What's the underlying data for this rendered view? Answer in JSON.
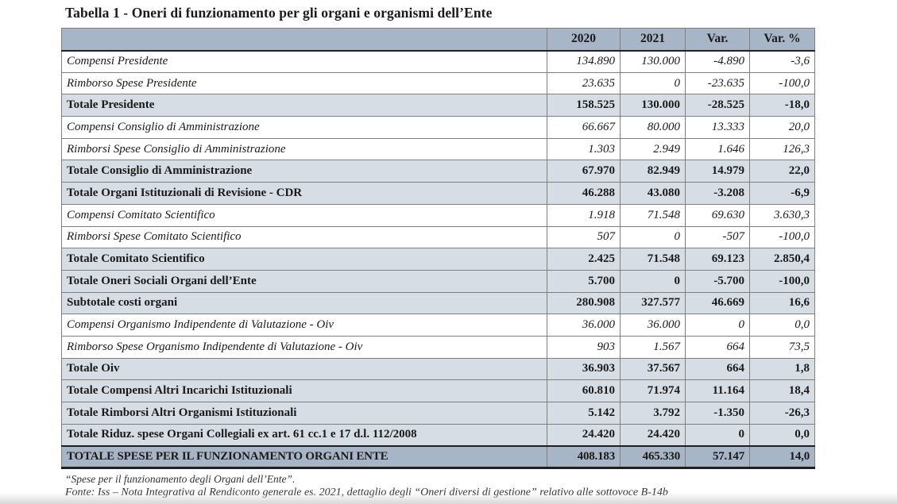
{
  "title": "Tabella 1 - Oneri di funzionamento per gli organi e organismi dell’Ente",
  "colors": {
    "header_bg": "#a8b5c6",
    "subtotal_bg": "#d7dde5",
    "grandtotal_bg": "#a8b5c6",
    "grid_border": "#7f7f7f",
    "heavy_border": "#1f1f1f"
  },
  "table": {
    "columns": [
      "",
      "2020",
      "2021",
      "Var.",
      "Var. %"
    ],
    "rows": [
      {
        "label": "Compensi Presidente",
        "v2020": "134.890",
        "v2021": "130.000",
        "var": "-4.890",
        "var_pct": "-3,6",
        "style": "plain"
      },
      {
        "label": "Rimborso Spese Presidente",
        "v2020": "23.635",
        "v2021": "0",
        "var": "-23.635",
        "var_pct": "-100,0",
        "style": "plain"
      },
      {
        "label": "Totale Presidente",
        "v2020": "158.525",
        "v2021": "130.000",
        "var": "-28.525",
        "var_pct": "-18,0",
        "style": "subtotal"
      },
      {
        "label": "Compensi Consiglio di Amministrazione",
        "v2020": "66.667",
        "v2021": "80.000",
        "var": "13.333",
        "var_pct": "20,0",
        "style": "plain"
      },
      {
        "label": "Rimborsi Spese Consiglio di Amministrazione",
        "v2020": "1.303",
        "v2021": "2.949",
        "var": "1.646",
        "var_pct": "126,3",
        "style": "plain"
      },
      {
        "label": "Totale Consiglio di Amministrazione",
        "v2020": "67.970",
        "v2021": "82.949",
        "var": "14.979",
        "var_pct": "22,0",
        "style": "subtotal"
      },
      {
        "label": "Totale Organi Istituzionali di Revisione - CDR",
        "v2020": "46.288",
        "v2021": "43.080",
        "var": "-3.208",
        "var_pct": "-6,9",
        "style": "subtotal"
      },
      {
        "label": "Compensi Comitato Scientifico",
        "v2020": "1.918",
        "v2021": "71.548",
        "var": "69.630",
        "var_pct": "3.630,3",
        "style": "plain"
      },
      {
        "label": "Rimborsi Spese Comitato Scientifico",
        "v2020": "507",
        "v2021": "0",
        "var": "-507",
        "var_pct": "-100,0",
        "style": "plain"
      },
      {
        "label": "Totale Comitato Scientifico",
        "v2020": "2.425",
        "v2021": "71.548",
        "var": "69.123",
        "var_pct": "2.850,4",
        "style": "subtotal"
      },
      {
        "label": "Totale Oneri Sociali Organi dell’Ente",
        "v2020": "5.700",
        "v2021": "0",
        "var": "-5.700",
        "var_pct": "-100,0",
        "style": "subtotal"
      },
      {
        "label": "Subtotale costi organi",
        "v2020": "280.908",
        "v2021": "327.577",
        "var": "46.669",
        "var_pct": "16,6",
        "style": "subtotal"
      },
      {
        "label": "Compensi Organismo Indipendente di Valutazione - Oiv",
        "v2020": "36.000",
        "v2021": "36.000",
        "var": "0",
        "var_pct": "0,0",
        "style": "plain"
      },
      {
        "label": "Rimborso Spese Organismo Indipendente di Valutazione - Oiv",
        "v2020": "903",
        "v2021": "1.567",
        "var": "664",
        "var_pct": "73,5",
        "style": "plain"
      },
      {
        "label": "Totale Oiv",
        "v2020": "36.903",
        "v2021": "37.567",
        "var": "664",
        "var_pct": "1,8",
        "style": "subtotal"
      },
      {
        "label": "Totale Compensi Altri Incarichi Istituzionali",
        "v2020": "60.810",
        "v2021": "71.974",
        "var": "11.164",
        "var_pct": "18,4",
        "style": "subtotal"
      },
      {
        "label": "Totale Rimborsi Altri Organismi Istituzionali",
        "v2020": "5.142",
        "v2021": "3.792",
        "var": "-1.350",
        "var_pct": "-26,3",
        "style": "subtotal"
      },
      {
        "label": "Totale Riduz. spese Organi Collegiali ex art. 61 cc.1 e 17 d.l. 112/2008",
        "v2020": "24.420",
        "v2021": "24.420",
        "var": "0",
        "var_pct": "0,0",
        "style": "subtotal"
      },
      {
        "label": "TOTALE SPESE PER IL FUNZIONAMENTO ORGANI ENTE",
        "v2020": "408.183",
        "v2021": "465.330",
        "var": "57.147",
        "var_pct": "14,0",
        "style": "grandtotal"
      }
    ]
  },
  "footnotes": [
    "“Spese per il funzionamento degli Organi dell’Ente”.",
    "Fonte: Iss – Nota Integrativa al Rendiconto generale es. 2021, dettaglio degli “Oneri diversi di gestione” relativo alle sottovoce B-14b"
  ]
}
